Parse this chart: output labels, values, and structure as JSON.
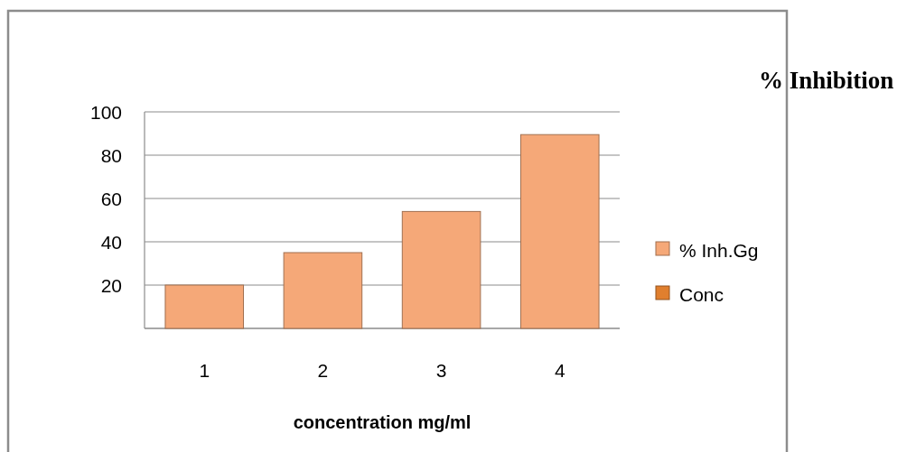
{
  "chart_data": {
    "type": "bar",
    "title": "% Inhibition",
    "xlabel": "concentration mg/ml",
    "categories": [
      "1",
      "2",
      "3",
      "4"
    ],
    "series": [
      {
        "name": "% Inh.Gg",
        "color": "#f5a878",
        "values": [
          20,
          35,
          54,
          89.5
        ]
      },
      {
        "name": "Conc",
        "color": "#e07f2e",
        "values": [
          null,
          null,
          null,
          null
        ]
      }
    ],
    "ylim": [
      0,
      100
    ],
    "yticks": [
      {
        "value": 0,
        "label": null
      },
      20,
      40,
      60,
      80,
      100
    ],
    "grid": "y",
    "legend": "right"
  }
}
